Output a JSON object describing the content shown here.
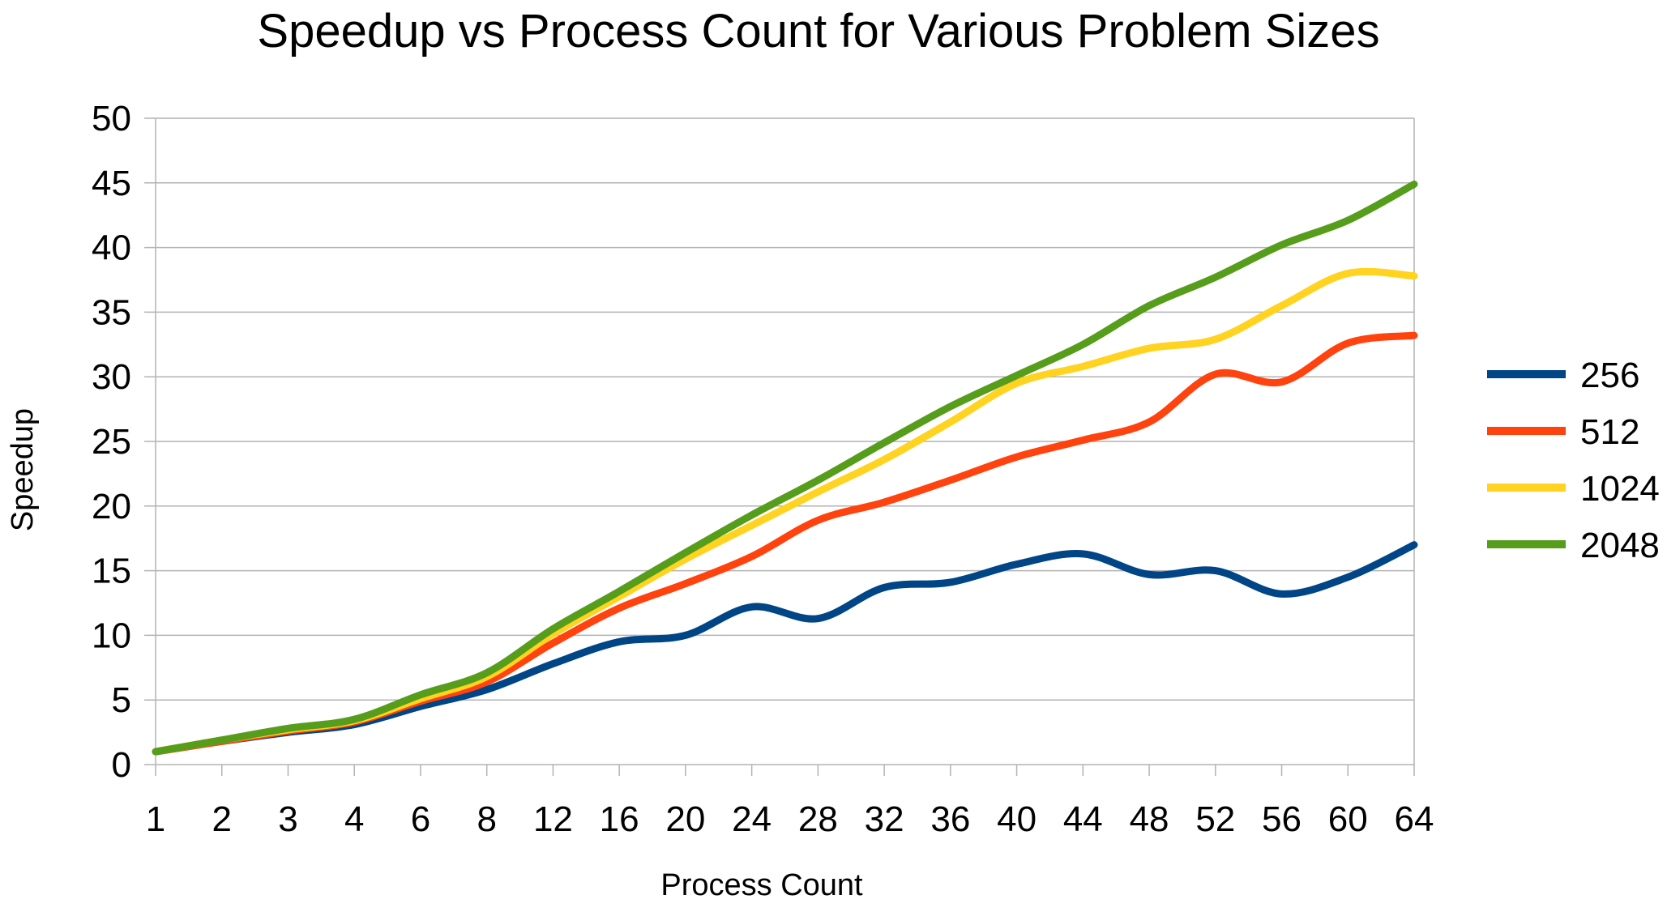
{
  "chart_data": {
    "type": "line",
    "title": "Speedup vs Process Count for Various Problem Sizes",
    "xlabel": "Process Count",
    "ylabel": "Speedup",
    "categories": [
      "1",
      "2",
      "3",
      "4",
      "6",
      "8",
      "12",
      "16",
      "20",
      "24",
      "28",
      "32",
      "36",
      "40",
      "44",
      "48",
      "52",
      "56",
      "60",
      "64"
    ],
    "ylim": [
      0,
      50
    ],
    "yticks": [
      0,
      5,
      10,
      15,
      20,
      25,
      30,
      35,
      40,
      45,
      50
    ],
    "grid": true,
    "legend_position": "right",
    "series": [
      {
        "name": "256",
        "color": "#004586",
        "values": [
          1,
          1.8,
          2.5,
          3.1,
          4.5,
          5.8,
          7.8,
          9.5,
          10,
          12.2,
          11.3,
          13.7,
          14.1,
          15.5,
          16.3,
          14.7,
          15,
          13.2,
          14.5,
          17
        ]
      },
      {
        "name": "512",
        "color": "#ff420e",
        "values": [
          1,
          1.8,
          2.6,
          3.3,
          4.9,
          6.4,
          9.4,
          12.1,
          14,
          16.1,
          18.9,
          20.3,
          22,
          23.8,
          25.1,
          26.5,
          30.2,
          29.6,
          32.6,
          33.2
        ]
      },
      {
        "name": "1024",
        "color": "#ffd320",
        "values": [
          1,
          1.9,
          2.7,
          3.4,
          5.1,
          6.8,
          10.1,
          13,
          15.9,
          18.5,
          21.1,
          23.6,
          26.5,
          29.5,
          30.8,
          32.2,
          32.9,
          35.5,
          38,
          37.8
        ]
      },
      {
        "name": "2048",
        "color": "#579d1c",
        "values": [
          1,
          1.9,
          2.8,
          3.5,
          5.4,
          7.1,
          10.5,
          13.4,
          16.4,
          19.3,
          22,
          24.9,
          27.7,
          30.1,
          32.5,
          35.5,
          37.7,
          40.2,
          42.1,
          44.9
        ]
      }
    ]
  }
}
